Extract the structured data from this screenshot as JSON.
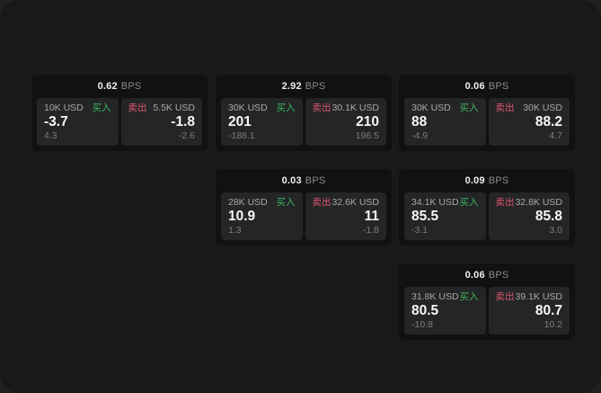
{
  "labels": {
    "buy": "买入",
    "sell": "卖出",
    "bps": "BPS"
  },
  "colors": {
    "backdrop": "#212121",
    "window_bg": "#191919",
    "card_bg": "#111112",
    "panel_bg": "#242526",
    "buy_green": "#3eb45e",
    "sell_red": "#dd5672",
    "value_white": "#f7f7f7",
    "muted_gray": "#7c7c7c"
  },
  "cards": [
    {
      "bps": "0.62",
      "buy": {
        "amount": "10K USD",
        "value": "-3.7",
        "delta": "4.3"
      },
      "sell": {
        "amount": "5.5K USD",
        "value": "-1.8",
        "delta": "-2.6"
      }
    },
    {
      "bps": "2.92",
      "buy": {
        "amount": "30K USD",
        "value": "201",
        "delta": "-188.1"
      },
      "sell": {
        "amount": "30.1K USD",
        "value": "210",
        "delta": "196.5"
      }
    },
    {
      "bps": "0.06",
      "buy": {
        "amount": "30K USD",
        "value": "88",
        "delta": "-4.9"
      },
      "sell": {
        "amount": "30K USD",
        "value": "88.2",
        "delta": "4.7"
      }
    },
    {
      "bps": "0.03",
      "buy": {
        "amount": "28K USD",
        "value": "10.9",
        "delta": "1.3"
      },
      "sell": {
        "amount": "32.6K USD",
        "value": "11",
        "delta": "-1.8"
      }
    },
    {
      "bps": "0.09",
      "buy": {
        "amount": "34.1K USD",
        "value": "85.5",
        "delta": "-3.1"
      },
      "sell": {
        "amount": "32.8K USD",
        "value": "85.8",
        "delta": "3.0"
      }
    },
    {
      "bps": "0.06",
      "buy": {
        "amount": "31.8K USD",
        "value": "80.5",
        "delta": "-10.8"
      },
      "sell": {
        "amount": "39.1K USD",
        "value": "80.7",
        "delta": "10.2"
      }
    }
  ]
}
